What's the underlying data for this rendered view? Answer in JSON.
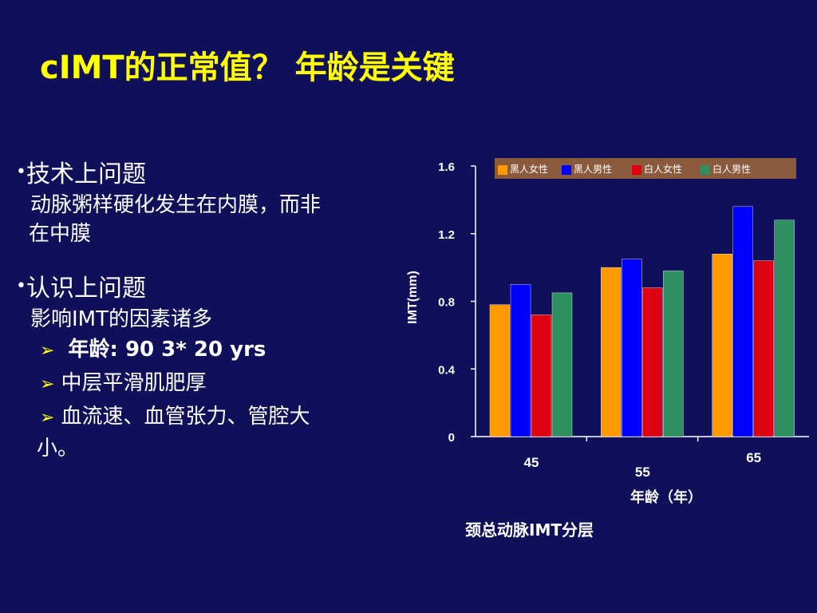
{
  "slide": {
    "title": "cIMT的正常值？ 年龄是关键",
    "section1": {
      "heading": "技术上问题",
      "line1": "动脉粥样硬化发生在内膜，而非",
      "line2": "在中膜"
    },
    "section2": {
      "heading": "认识上问题",
      "subtitle": "影响IMT的因素诸多",
      "bullets": [
        " 年龄: 90  3* 20 yrs",
        "中层平滑肌肥厚",
        "血流速、血管张力、管腔大"
      ],
      "bullet3_cont": "小。"
    },
    "caption": "颈总动脉IMT分层"
  },
  "colors": {
    "background": "#0f0f5a",
    "title": "#ffff00",
    "legend_bg": "#8b5a3c"
  },
  "chart_data": {
    "type": "bar",
    "categories": [
      "45",
      "55",
      "65"
    ],
    "series": [
      {
        "name": "黑人女性",
        "color": "#ff9900",
        "values": [
          0.78,
          1.0,
          1.08
        ]
      },
      {
        "name": "黑人男性",
        "color": "#0000ff",
        "values": [
          0.9,
          1.05,
          1.36
        ]
      },
      {
        "name": "白人女性",
        "color": "#dd0011",
        "values": [
          0.72,
          0.88,
          1.04
        ]
      },
      {
        "name": "白人男性",
        "color": "#2e9060",
        "values": [
          0.85,
          0.98,
          1.28
        ]
      }
    ],
    "xlabel": "年龄（年）",
    "ylabel": "IMT(mm)",
    "ylim": [
      0,
      1.6
    ],
    "yticks": [
      "0",
      "0.4",
      "0.8",
      "1.2",
      "1.6"
    ],
    "legend": "top",
    "grid": false
  }
}
